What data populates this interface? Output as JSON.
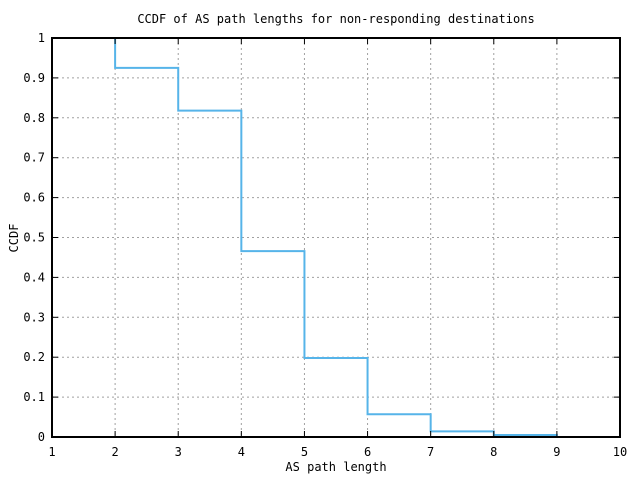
{
  "chart_data": {
    "type": "line",
    "subtype": "ccdf-step-function",
    "title": "CCDF of AS path lengths for non-responding destinations",
    "xlabel": "AS path length",
    "ylabel": "CCDF",
    "xlim": [
      1,
      10
    ],
    "ylim": [
      0,
      1
    ],
    "grid": true,
    "legend": "none",
    "x_ticks": {
      "values": [
        1,
        2,
        3,
        4,
        5,
        6,
        7,
        8,
        9,
        10
      ],
      "labels": [
        "1",
        "2",
        "3",
        "4",
        "5",
        "6",
        "7",
        "8",
        "9",
        "10"
      ]
    },
    "y_ticks": {
      "values": [
        0,
        0.1,
        0.2,
        0.3,
        0.4,
        0.5,
        0.6,
        0.7,
        0.8,
        0.9,
        1
      ],
      "labels": [
        "0",
        "0.1",
        "0.2",
        "0.3",
        "0.4",
        "0.5",
        "0.6",
        "0.7",
        "0.8",
        "0.9",
        "1"
      ]
    },
    "colors": {
      "line": "#56b4e9",
      "grid": "#a0a0a0",
      "axis": "#000000",
      "background": "#ffffff"
    },
    "series": [
      {
        "name": "CCDF",
        "step_mode": "post",
        "points": [
          {
            "x": 1,
            "y": 1.0
          },
          {
            "x": 2,
            "y": 0.925
          },
          {
            "x": 3,
            "y": 0.818
          },
          {
            "x": 4,
            "y": 0.466
          },
          {
            "x": 5,
            "y": 0.198
          },
          {
            "x": 6,
            "y": 0.057
          },
          {
            "x": 7,
            "y": 0.014
          },
          {
            "x": 8,
            "y": 0.005
          },
          {
            "x": 9,
            "y": 0.0
          }
        ]
      }
    ]
  }
}
